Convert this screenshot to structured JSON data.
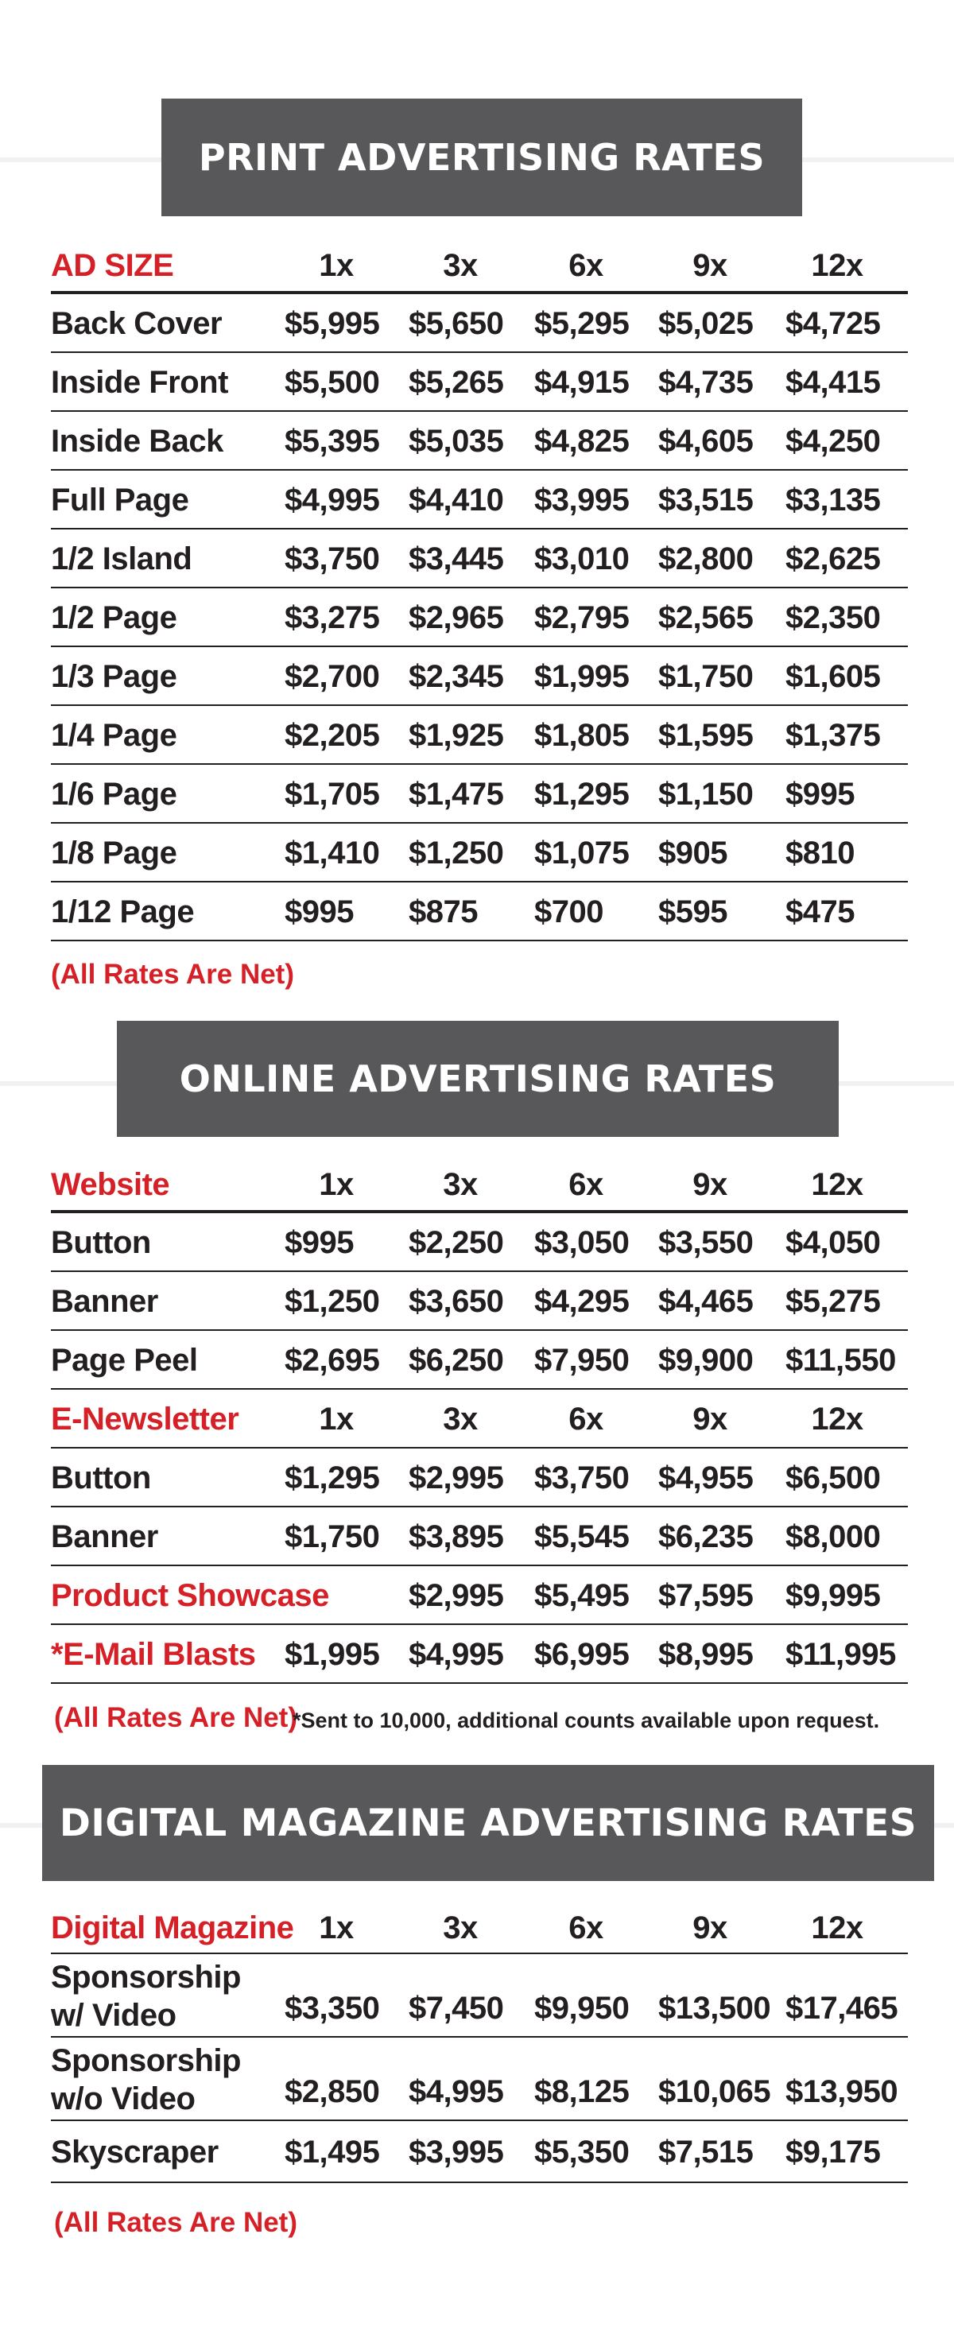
{
  "print": {
    "title": "PRINT ADVERTISING RATES",
    "header": [
      "AD SIZE",
      "1x",
      "3x",
      "6x",
      "9x",
      "12x"
    ],
    "rows": [
      [
        "Back Cover",
        "$5,995",
        "$5,650",
        "$5,295",
        "$5,025",
        "$4,725"
      ],
      [
        "Inside Front",
        "$5,500",
        "$5,265",
        "$4,915",
        "$4,735",
        "$4,415"
      ],
      [
        "Inside Back",
        "$5,395",
        "$5,035",
        "$4,825",
        "$4,605",
        "$4,250"
      ],
      [
        "Full Page",
        "$4,995",
        "$4,410",
        "$3,995",
        "$3,515",
        "$3,135"
      ],
      [
        "1/2 Island",
        "$3,750",
        "$3,445",
        "$3,010",
        "$2,800",
        "$2,625"
      ],
      [
        "1/2 Page",
        "$3,275",
        "$2,965",
        "$2,795",
        "$2,565",
        "$2,350"
      ],
      [
        "1/3 Page",
        "$2,700",
        "$2,345",
        "$1,995",
        "$1,750",
        "$1,605"
      ],
      [
        "1/4 Page",
        "$2,205",
        "$1,925",
        "$1,805",
        "$1,595",
        "$1,375"
      ],
      [
        "1/6 Page",
        "$1,705",
        "$1,475",
        "$1,295",
        "$1,150",
        "$995"
      ],
      [
        "1/8 Page",
        "$1,410",
        "$1,250",
        "$1,075",
        "$905",
        "$810"
      ],
      [
        "1/12 Page",
        "$995",
        "$875",
        "$700",
        "$595",
        "$475"
      ]
    ],
    "note": "(All Rates Are Net)"
  },
  "online": {
    "title": "ONLINE ADVERTISING RATES",
    "website_header": [
      "Website",
      "1x",
      "3x",
      "6x",
      "9x",
      "12x"
    ],
    "website_rows": [
      [
        "Button",
        "$995",
        "$2,250",
        "$3,050",
        "$3,550",
        "$4,050"
      ],
      [
        "Banner",
        "$1,250",
        "$3,650",
        "$4,295",
        "$4,465",
        "$5,275"
      ],
      [
        "Page Peel",
        "$2,695",
        "$6,250",
        "$7,950",
        "$9,900",
        "$11,550"
      ]
    ],
    "newsletter_header": [
      "E-Newsletter",
      "1x",
      "3x",
      "6x",
      "9x",
      "12x"
    ],
    "newsletter_rows": [
      [
        "Button",
        "$1,295",
        "$2,995",
        "$3,750",
        "$4,955",
        "$6,500"
      ],
      [
        "Banner",
        "$1,750",
        "$3,895",
        "$5,545",
        "$6,235",
        "$8,000"
      ]
    ],
    "showcase_row": [
      "Product Showcase",
      "$2,995",
      "$5,495",
      "$7,595",
      "$9,995"
    ],
    "blasts_row": [
      "*E-Mail Blasts",
      "$1,995",
      "$4,995",
      "$6,995",
      "$8,995",
      "$11,995"
    ],
    "note": "(All Rates Are Net)",
    "footnote": "*Sent to 10,000, additional counts available upon request."
  },
  "digital": {
    "title": "DIGITAL MAGAZINE ADVERTISING RATES",
    "header": [
      "Digital Magazine",
      "1x",
      "3x",
      "6x",
      "9x",
      "12x"
    ],
    "rows": [
      [
        "Sponsorship",
        "w/ Video",
        "$3,350",
        "$7,450",
        "$9,950",
        "$13,500",
        "$17,465"
      ],
      [
        "Sponsorship",
        "w/o Video",
        "$2,850",
        "$4,995",
        "$8,125",
        "$10,065",
        "$13,950"
      ]
    ],
    "skyscraper_row": [
      "Skyscraper",
      "$1,495",
      "$3,995",
      "$5,350",
      "$7,515",
      "$9,175"
    ],
    "note": "(All Rates Are Net)"
  }
}
